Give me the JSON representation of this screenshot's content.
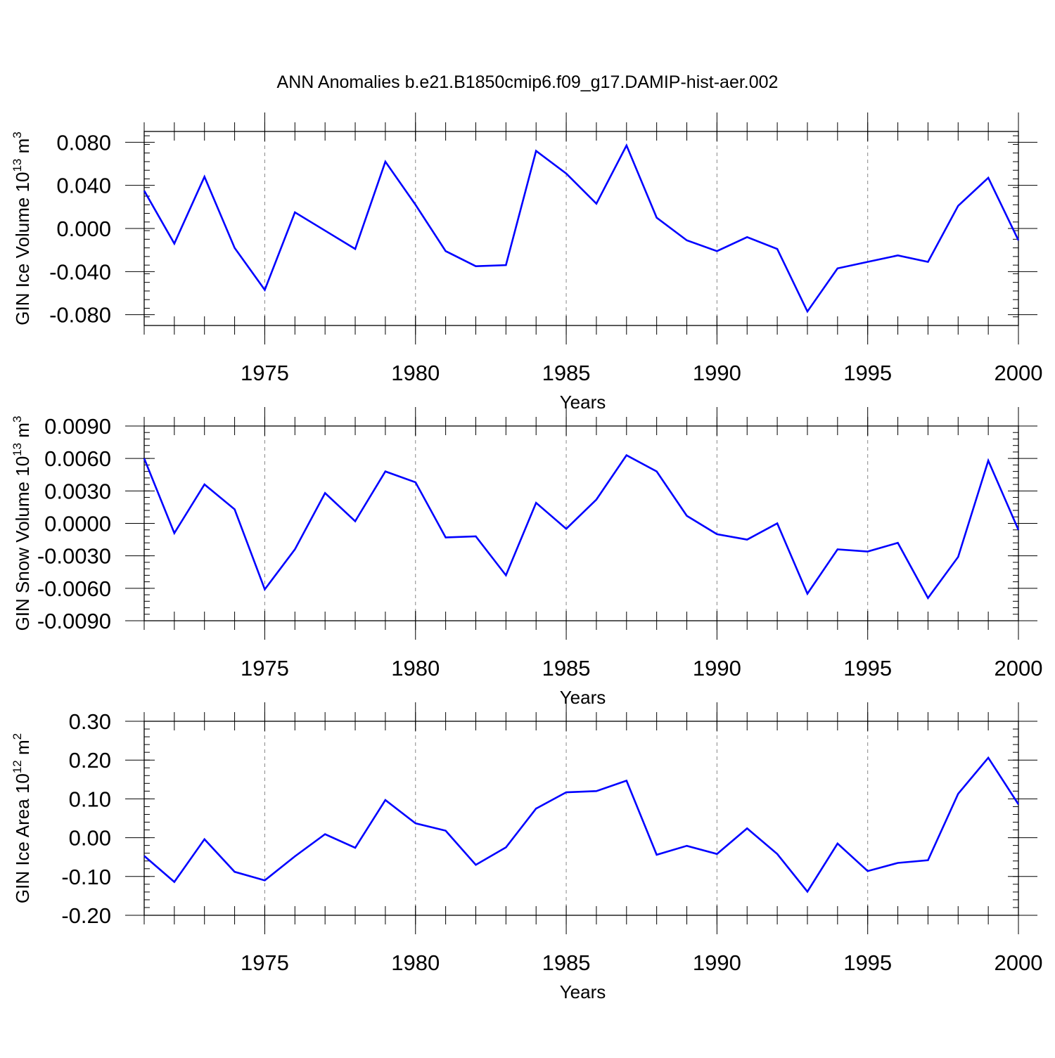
{
  "figure": {
    "title": "ANN Anomalies b.e21.B1850cmip6.f09_g17.DAMIP-hist-aer.002",
    "line_color": "#0000ff",
    "axis_color": "#000000",
    "grid_color": "#888888"
  },
  "chart_data": [
    {
      "type": "line",
      "title": "",
      "xlabel": "Years",
      "ylabel": "GIN Ice Volume 10",
      "ylabel_exp": "13",
      "ylabel_unit": " m",
      "ylabel_unit_exp": "3",
      "xlim": [
        1971,
        2000
      ],
      "ylim": [
        -0.09,
        0.09
      ],
      "xticks": [
        1975,
        1980,
        1985,
        1990,
        1995,
        2000
      ],
      "xtick_labels": [
        "1975",
        "1980",
        "1985",
        "1990",
        "1995",
        "2000"
      ],
      "yticks": [
        -0.08,
        -0.04,
        0.0,
        0.04,
        0.08
      ],
      "ytick_labels": [
        "-0.080",
        "-0.040",
        "0.000",
        "0.040",
        "0.080"
      ],
      "grid": "vertical dashed at major x ticks",
      "x": [
        1971,
        1972,
        1973,
        1974,
        1975,
        1976,
        1977,
        1978,
        1979,
        1980,
        1981,
        1982,
        1983,
        1984,
        1985,
        1986,
        1987,
        1988,
        1989,
        1990,
        1991,
        1992,
        1993,
        1994,
        1995,
        1996,
        1997,
        1998,
        1999,
        2000
      ],
      "series": [
        {
          "values": [
            0.035,
            -0.014,
            0.048,
            -0.018,
            -0.057,
            0.015,
            -0.002,
            -0.019,
            0.062,
            0.022,
            -0.021,
            -0.035,
            -0.034,
            0.072,
            0.051,
            0.023,
            0.077,
            0.01,
            -0.011,
            -0.021,
            -0.008,
            -0.019,
            -0.077,
            -0.037,
            -0.031,
            -0.025,
            -0.031,
            0.021,
            0.047,
            -0.011
          ]
        }
      ]
    },
    {
      "type": "line",
      "title": "",
      "xlabel": "Years",
      "ylabel": "GIN Snow Volume 10",
      "ylabel_exp": "13",
      "ylabel_unit": " m",
      "ylabel_unit_exp": "3",
      "xlim": [
        1971,
        2000
      ],
      "ylim": [
        -0.009,
        0.009
      ],
      "xticks": [
        1975,
        1980,
        1985,
        1990,
        1995,
        2000
      ],
      "xtick_labels": [
        "1975",
        "1980",
        "1985",
        "1990",
        "1995",
        "2000"
      ],
      "yticks": [
        -0.009,
        -0.006,
        -0.003,
        0.0,
        0.003,
        0.006,
        0.009
      ],
      "ytick_labels": [
        "-0.0090",
        "-0.0060",
        "-0.0030",
        "0.0000",
        "0.0030",
        "0.0060",
        "0.0090"
      ],
      "grid": "vertical dashed at major x ticks",
      "x": [
        1971,
        1972,
        1973,
        1974,
        1975,
        1976,
        1977,
        1978,
        1979,
        1980,
        1981,
        1982,
        1983,
        1984,
        1985,
        1986,
        1987,
        1988,
        1989,
        1990,
        1991,
        1992,
        1993,
        1994,
        1995,
        1996,
        1997,
        1998,
        1999,
        2000
      ],
      "series": [
        {
          "values": [
            0.006,
            -0.0009,
            0.0036,
            0.0013,
            -0.0061,
            -0.0024,
            0.0028,
            0.0002,
            0.0048,
            0.0038,
            -0.0013,
            -0.0012,
            -0.0048,
            0.0019,
            -0.0005,
            0.0022,
            0.0063,
            0.0048,
            0.0007,
            -0.001,
            -0.0015,
            0.0,
            -0.0065,
            -0.0024,
            -0.0026,
            -0.0018,
            -0.0069,
            -0.0031,
            0.0058,
            -0.0006
          ]
        }
      ]
    },
    {
      "type": "line",
      "title": "",
      "xlabel": "Years",
      "ylabel": "GIN Ice Area 10",
      "ylabel_exp": "12",
      "ylabel_unit": " m",
      "ylabel_unit_exp": "2",
      "xlim": [
        1971,
        2000
      ],
      "ylim": [
        -0.2,
        0.3
      ],
      "xticks": [
        1975,
        1980,
        1985,
        1990,
        1995,
        2000
      ],
      "xtick_labels": [
        "1975",
        "1980",
        "1985",
        "1990",
        "1995",
        "2000"
      ],
      "yticks": [
        -0.2,
        -0.1,
        0.0,
        0.1,
        0.2,
        0.3
      ],
      "ytick_labels": [
        "-0.20",
        "-0.10",
        "0.00",
        "0.10",
        "0.20",
        "0.30"
      ],
      "grid": "vertical dashed at major x ticks",
      "x": [
        1971,
        1972,
        1973,
        1974,
        1975,
        1976,
        1977,
        1978,
        1979,
        1980,
        1981,
        1982,
        1983,
        1984,
        1985,
        1986,
        1987,
        1988,
        1989,
        1990,
        1991,
        1992,
        1993,
        1994,
        1995,
        1996,
        1997,
        1998,
        1999,
        2000
      ],
      "series": [
        {
          "values": [
            -0.047,
            -0.114,
            -0.004,
            -0.088,
            -0.11,
            -0.048,
            0.009,
            -0.026,
            0.097,
            0.037,
            0.018,
            -0.07,
            -0.025,
            0.075,
            0.117,
            0.12,
            0.147,
            -0.044,
            -0.021,
            -0.042,
            0.024,
            -0.042,
            -0.139,
            -0.015,
            -0.086,
            -0.065,
            -0.058,
            0.113,
            0.206,
            0.086
          ]
        }
      ]
    }
  ]
}
